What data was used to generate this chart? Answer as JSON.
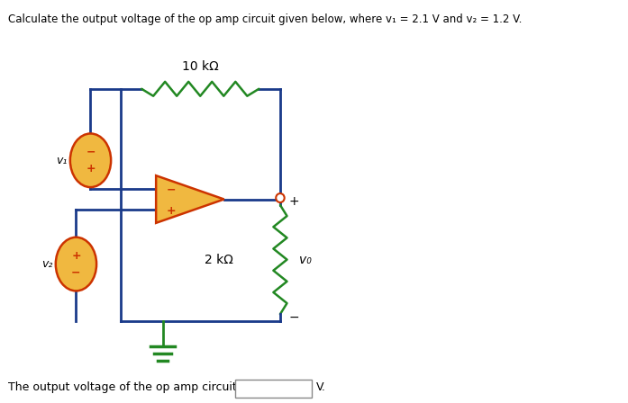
{
  "title_text": "Calculate the output voltage of the op amp circuit given below, where v₁ = 2.1 V and v₂ = 1.2 V.",
  "bottom_text": "The output voltage of the op amp circuit is",
  "bottom_unit": "V.",
  "resistor1_label": "10 kΩ",
  "resistor2_label": "2 kΩ",
  "v1_label": "v₁",
  "v2_label": "v₂",
  "vo_label": "v₀",
  "bg_color": "#ffffff",
  "wire_color": "#1a3a8a",
  "opamp_fill": "#f0b840",
  "opamp_edge": "#cc3300",
  "source_fill": "#f0b840",
  "source_edge": "#cc3300",
  "resistor_color": "#228822",
  "text_color": "#000000",
  "plus_minus_color": "#cc3300",
  "node_color": "#cc3300",
  "ground_color": "#228822"
}
